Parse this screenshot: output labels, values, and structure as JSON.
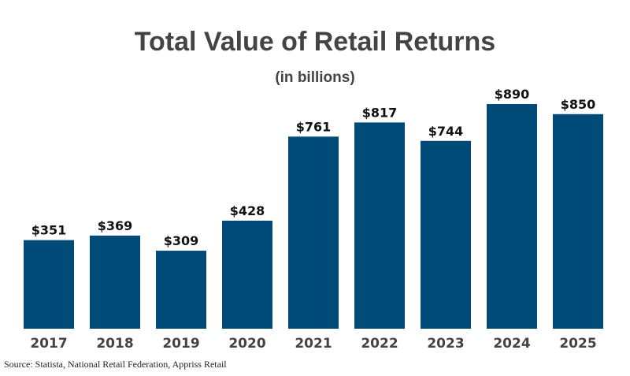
{
  "chart_data": {
    "type": "bar",
    "title": "Total Value of Retail Returns",
    "subtitle": "(in billions)",
    "categories": [
      "2017",
      "2018",
      "2019",
      "2020",
      "2021",
      "2022",
      "2023",
      "2024",
      "2025"
    ],
    "values": [
      351,
      369,
      309,
      428,
      761,
      817,
      744,
      890,
      850
    ],
    "data_labels": [
      "$351",
      "$369",
      "$309",
      "$428",
      "$761",
      "$817",
      "$744",
      "$890",
      "$850"
    ],
    "ylim": [
      0,
      890
    ],
    "grid": false,
    "bar_color": "#004a78",
    "source": "Source: Statista, National Retail Federation, Appriss Retail"
  }
}
